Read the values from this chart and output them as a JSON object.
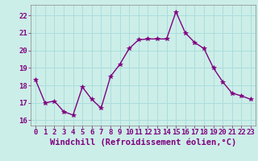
{
  "x": [
    0,
    1,
    2,
    3,
    4,
    5,
    6,
    7,
    8,
    9,
    10,
    11,
    12,
    13,
    14,
    15,
    16,
    17,
    18,
    19,
    20,
    21,
    22,
    23
  ],
  "y": [
    18.3,
    17.0,
    17.1,
    16.5,
    16.3,
    17.9,
    17.2,
    16.7,
    18.5,
    19.2,
    20.1,
    20.6,
    20.65,
    20.65,
    20.65,
    22.2,
    21.0,
    20.45,
    20.1,
    19.0,
    18.2,
    17.55,
    17.4,
    17.2
  ],
  "line_color": "#800080",
  "marker": "*",
  "marker_size": 4,
  "bg_color": "#cceee8",
  "grid_color": "#aadddd",
  "xlabel": "Windchill (Refroidissement éolien,°C)",
  "xlabel_fontsize": 7.5,
  "ylim": [
    15.7,
    22.6
  ],
  "xlim": [
    -0.5,
    23.5
  ],
  "yticks": [
    16,
    17,
    18,
    19,
    20,
    21,
    22
  ],
  "xticks": [
    0,
    1,
    2,
    3,
    4,
    5,
    6,
    7,
    8,
    9,
    10,
    11,
    12,
    13,
    14,
    15,
    16,
    17,
    18,
    19,
    20,
    21,
    22,
    23
  ],
  "tick_fontsize": 6.5,
  "line_width": 1.0,
  "spine_color": "#888888"
}
